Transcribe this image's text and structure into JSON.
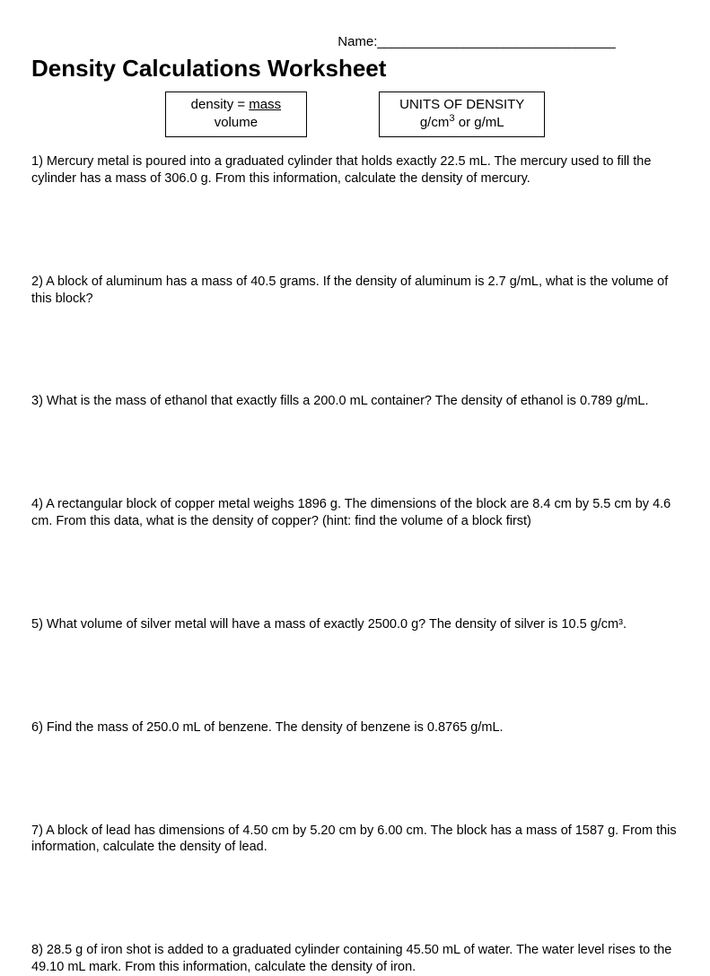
{
  "header": {
    "name_label": "Name:",
    "name_underline": "____________________________________"
  },
  "title": "Density Calculations Worksheet",
  "formula_box": {
    "prefix": "density = ",
    "numerator": "mass",
    "denominator": "volume"
  },
  "units_box": {
    "title": "UNITS OF DENSITY",
    "content_prefix": "g/cm",
    "content_sup": "3",
    "content_suffix": " or g/mL"
  },
  "questions": [
    "1)  Mercury metal is poured into a graduated cylinder that holds exactly 22.5 mL. The mercury used to fill the cylinder has a mass of 306.0 g. From this information, calculate the density of mercury.",
    "2)  A block of aluminum has a mass of 40.5 grams.  If the density of aluminum is 2.7 g/mL, what is the volume of this block?",
    "3)  What is the mass of ethanol that exactly fills a 200.0 mL container? The density of ethanol is 0.789 g/mL.",
    "4)  A rectangular block of copper metal weighs 1896 g. The dimensions of the block are 8.4 cm by 5.5 cm by 4.6 cm. From this data, what is the density of copper?  (hint:  find the volume of a block first)",
    "5)  What volume of silver metal will have a mass of exactly 2500.0 g?  The density of silver is 10.5 g/cm³.",
    "6)  Find the mass of 250.0 mL of benzene. The density of benzene is 0.8765 g/mL.",
    "7)   A block of lead has dimensions of 4.50 cm by 5.20 cm by 6.00 cm. The block has a mass of 1587 g. From this information, calculate the density of lead.",
    "8)   28.5 g of iron shot is added to a graduated cylinder containing 45.50 mL of water. The water level rises to the 49.10 mL mark.  From this information, calculate the density of iron."
  ],
  "colors": {
    "background": "#ffffff",
    "text": "#000000",
    "border": "#000000"
  }
}
